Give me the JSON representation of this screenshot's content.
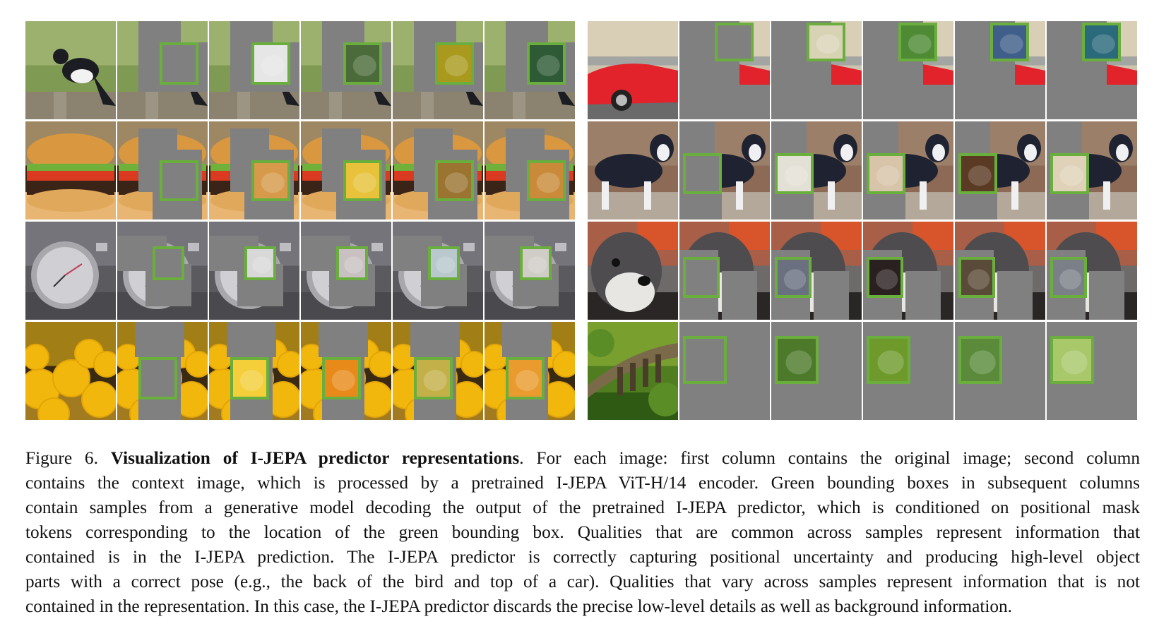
{
  "figure": {
    "label": "Figure 6.",
    "title": "Visualization of I-JEPA predictor representations",
    "caption_lines": [
      ". For each image: first column contains the original image; second column",
      "contains the context image, which is processed by a pretrained I-JEPA ViT-H/14 encoder. Green bounding boxes in subsequent columns",
      "contain samples from a generative model decoding the output of the pretrained I-JEPA predictor, which is conditioned on positional mask",
      "tokens corresponding to the location of the green bounding box. Qualities that are common across samples represent information that",
      "contained is in the I-JEPA prediction. The I-JEPA predictor is correctly capturing positional uncertainty and producing high-level object",
      "parts with a correct pose (e.g., the back of the bird and top of a car). Qualities that vary across samples represent information that is not",
      "contained in the representation. In this case, the I-JEPA predictor discards the precise low-level details as well as background information."
    ]
  },
  "colors": {
    "mask_gray": "#808080",
    "box_green": "#6aae3e"
  },
  "panels": {
    "left": {
      "rows": [
        {
          "subject": "magpie bird",
          "colors": {
            "bg": "#7f9a52",
            "bg2": "#b7c487",
            "main": "#1c1d22",
            "accent": "#f2f2f2",
            "ground": "#8c8270"
          },
          "samples": [
            "#e6e6e6",
            "#4b6b3a",
            "#a99a1e",
            "#2e5a35"
          ]
        },
        {
          "subject": "hamburger",
          "colors": {
            "bg": "#3b2411",
            "bg2": "#f0d8a8",
            "main": "#3a2417",
            "accent": "#d93a20",
            "ground": "#e8b572"
          },
          "samples": [
            "#d69a4a",
            "#e7c23a",
            "#9a7430",
            "#c98a3a"
          ]
        },
        {
          "subject": "stopwatch",
          "colors": {
            "bg": "#5a5a5f",
            "bg2": "#8b8b90",
            "main": "#cfcfd4",
            "accent": "#9f9fa5",
            "ground": "#4a4a4e"
          },
          "samples": [
            "#d8d8d8",
            "#c9c1c1",
            "#b8c8cc",
            "#d0ccc6"
          ]
        },
        {
          "subject": "lemons",
          "colors": {
            "bg": "#3a2a12",
            "bg2": "#f6c21a",
            "main": "#f2b70c",
            "accent": "#e3a507",
            "ground": "#a27a20"
          },
          "samples": [
            "#f4cf3a",
            "#e88a1a",
            "#c4b048",
            "#e99b2e"
          ]
        }
      ]
    },
    "right": {
      "rows": [
        {
          "subject": "red car",
          "colors": {
            "bg": "#cdc4b0",
            "bg2": "#7f8c98",
            "main": "#e2232b",
            "accent": "#b81a21",
            "ground": "#6a6a6a"
          },
          "samples": [
            "#d9d3b5",
            "#4f8a34",
            "#3f5e8a",
            "#2a6a7a"
          ]
        },
        {
          "subject": "husky dog",
          "colors": {
            "bg": "#8c6a55",
            "bg2": "#a98f7a",
            "main": "#1f2230",
            "accent": "#f0f0f2",
            "ground": "#b3a89a"
          },
          "samples": [
            "#e3e0d6",
            "#d8c4a8",
            "#5a3a22",
            "#e0d2b8"
          ]
        },
        {
          "subject": "schnauzer",
          "colors": {
            "bg": "#6e6a6a",
            "bg2": "#d8542a",
            "main": "#4e4c4f",
            "accent": "#e8e6e3",
            "ground": "#2a2626"
          },
          "samples": [
            "#6a7080",
            "#2a2020",
            "#5a4a38",
            "#7a7f88"
          ]
        },
        {
          "subject": "viaduct landscape",
          "colors": {
            "bg": "#4f7d1f",
            "bg2": "#9cbb3d",
            "main": "#7a6a4a",
            "accent": "#5a8d26",
            "ground": "#2f5a14"
          },
          "samples": [
            "#4d7a2a",
            "#6e9a2c",
            "#5a8a3a",
            "#a8c86a"
          ]
        }
      ]
    }
  }
}
